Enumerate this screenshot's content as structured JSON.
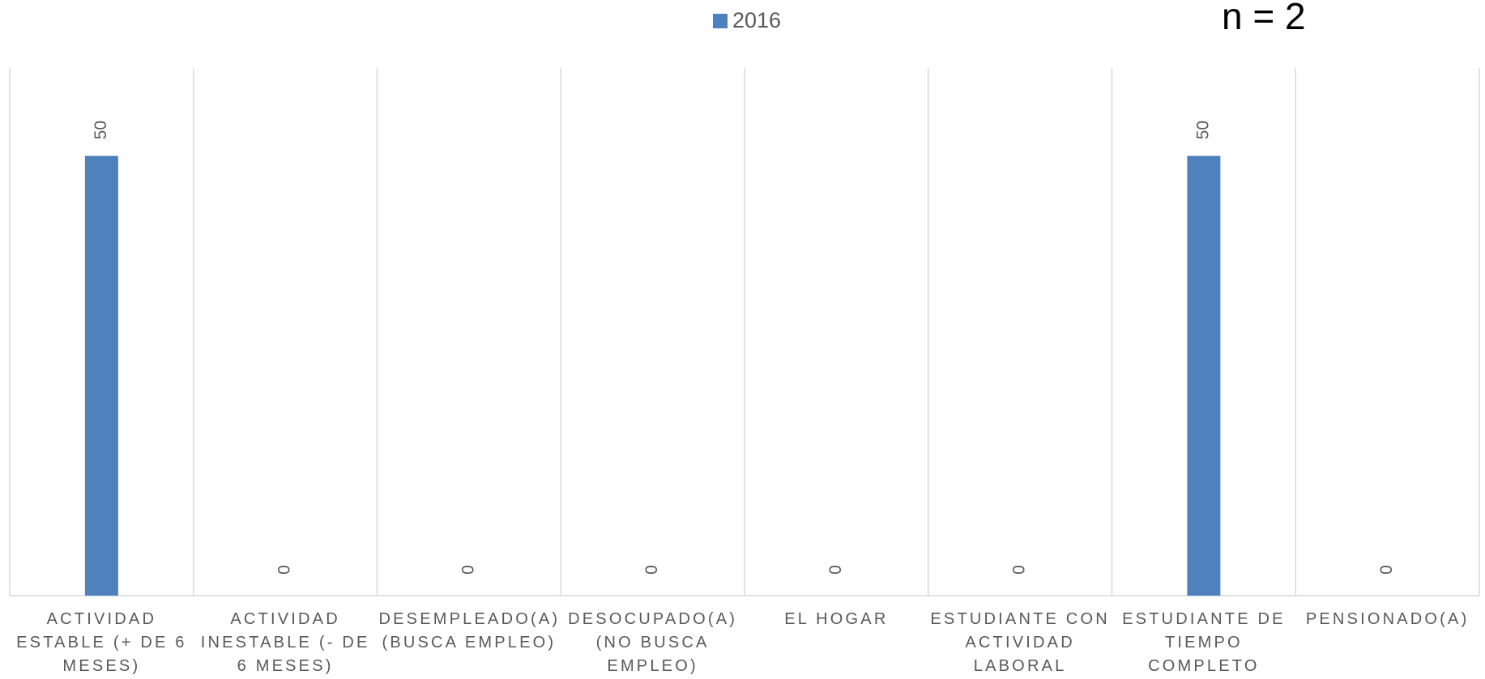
{
  "chart_data": {
    "type": "bar",
    "annotation": "n = 2",
    "categories": [
      "ACTIVIDAD ESTABLE (+ DE 6 MESES)",
      "ACTIVIDAD INESTABLE (- DE 6 MESES)",
      "DESEMPLEADO(A) (BUSCA EMPLEO)",
      "DESOCUPADO(A) (NO BUSCA EMPLEO)",
      "EL HOGAR",
      "ESTUDIANTE CON ACTIVIDAD LABORAL",
      "ESTUDIANTE DE TIEMPO COMPLETO",
      "PENSIONADO(A)"
    ],
    "series": [
      {
        "name": "2016",
        "color": "#4f81bd",
        "values": [
          50,
          0,
          0,
          0,
          0,
          0,
          50,
          0
        ]
      }
    ],
    "ylim": [
      0,
      60
    ],
    "legend": "top"
  }
}
